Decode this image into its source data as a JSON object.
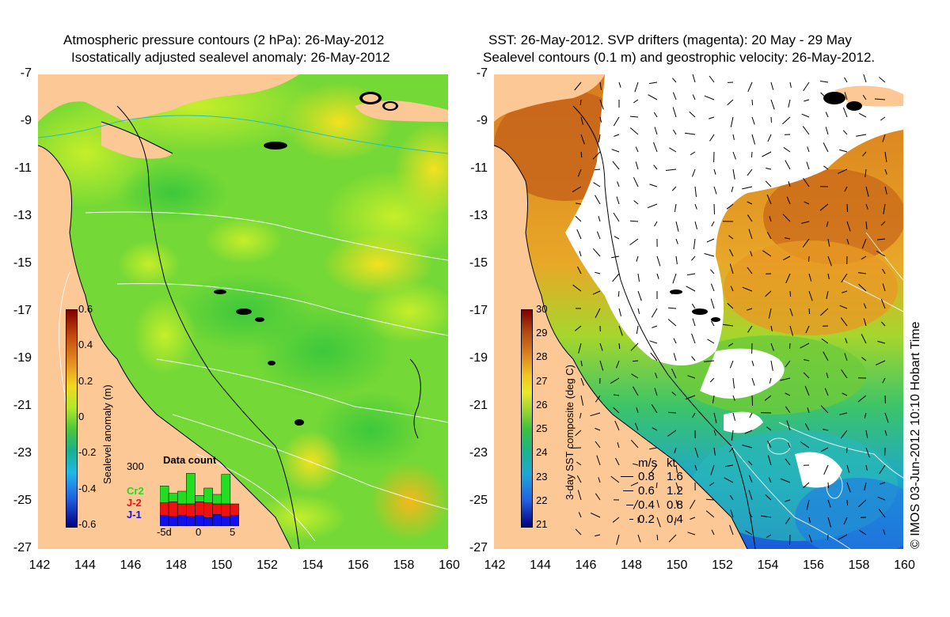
{
  "left_panel": {
    "title_line1": "Atmospheric pressure contours (2 hPa): 26-May-2012",
    "title_line2": "Isostatically adjusted sealevel anomaly: 26-May-2012",
    "lat_ticks": [
      "-7",
      "-9",
      "-11",
      "-13",
      "-15",
      "-17",
      "-19",
      "-21",
      "-23",
      "-25",
      "-27"
    ],
    "lon_ticks": [
      "142",
      "144",
      "146",
      "148",
      "150",
      "152",
      "154",
      "156",
      "158",
      "160"
    ],
    "colorbar": {
      "label": "Sealevel anomaly (m)",
      "ticks": [
        "0.6",
        "0.4",
        "0.2",
        "0",
        "-0.2",
        "-0.4",
        "-0.6"
      ]
    },
    "data_count": {
      "title": "Data count",
      "ymax_label": "300",
      "series_labels": [
        "Cr2",
        "J-2",
        "J-1"
      ],
      "series_colors": [
        "#22dd22",
        "#ee1111",
        "#1111ee"
      ],
      "x_ticks": [
        "-5d",
        "0",
        "5"
      ],
      "bars": [
        {
          "j1": 50,
          "j2": 60,
          "cr2": 80
        },
        {
          "j1": 45,
          "j2": 70,
          "cr2": 40
        },
        {
          "j1": 50,
          "j2": 55,
          "cr2": 60
        },
        {
          "j1": 45,
          "j2": 60,
          "cr2": 145
        },
        {
          "j1": 50,
          "j2": 65,
          "cr2": 30
        },
        {
          "j1": 40,
          "j2": 70,
          "cr2": 70
        },
        {
          "j1": 55,
          "j2": 50,
          "cr2": 45
        },
        {
          "j1": 45,
          "j2": 60,
          "cr2": 140
        },
        {
          "j1": 50,
          "j2": 55,
          "cr2": 0
        }
      ]
    }
  },
  "right_panel": {
    "title_line1": "SST: 26-May-2012. SVP drifters (magenta): 20 May - 29 May",
    "title_line2": "Sealevel contours (0.1 m) and geostrophic velocity: 26-May-2012.",
    "lat_ticks": [
      "-7",
      "-9",
      "-11",
      "-13",
      "-15",
      "-17",
      "-19",
      "-21",
      "-23",
      "-25",
      "-27"
    ],
    "lon_ticks": [
      "142",
      "144",
      "146",
      "148",
      "150",
      "152",
      "154",
      "156",
      "158",
      "160"
    ],
    "colorbar": {
      "label": "3-day SST composite (deg C)",
      "ticks": [
        "30",
        "29",
        "28",
        "27",
        "26",
        "25",
        "24",
        "23",
        "22",
        "21"
      ]
    },
    "velocity_legend": {
      "header_ms": "m/s",
      "header_kt": "kt",
      "rows": [
        {
          "ms": "0.8",
          "kt": "1.6"
        },
        {
          "ms": "0.6",
          "kt": "1.2"
        },
        {
          "ms": "0.4",
          "kt": "0.8"
        },
        {
          "ms": "0.2",
          "kt": "0.4"
        }
      ]
    }
  },
  "credit": "© IMOS 03-Jun-2012 10:10 Hobart Time",
  "colors": {
    "land": "#fcc896",
    "sla_base": "#7fe03a",
    "sst_warm": "#d97a1f",
    "cloud": "#ffffff"
  }
}
